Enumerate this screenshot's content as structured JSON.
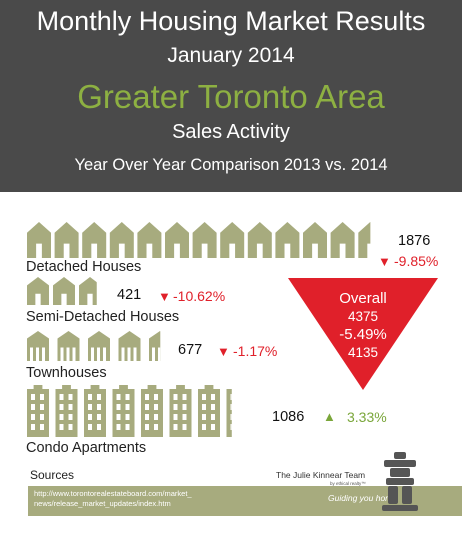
{
  "header": {
    "title": "Monthly Housing Market Results",
    "period": "January 2014",
    "region": "Greater Toronto Area",
    "subtitle": "Sales Activity",
    "comparison": "Year Over Year Comparison 2013 vs. 2014"
  },
  "chart_data": {
    "type": "bar",
    "title": "Monthly Housing Market Results",
    "categories": [
      "Detached Houses",
      "Semi-Detached Houses",
      "Townhouses",
      "Condo Apartments"
    ],
    "series": [
      {
        "values": [
          1876,
          421,
          677,
          1086
        ]
      }
    ],
    "changes": [
      "-9.85%",
      "-10.62%",
      "-1.17%",
      "3.33%"
    ],
    "change_directions": [
      "down",
      "down",
      "down",
      "up"
    ],
    "overall": {
      "label": "Overall",
      "value_2013": "4375",
      "change": "-5.49%",
      "value_2014": "4135"
    }
  },
  "rows": [
    {
      "label": "Detached Houses",
      "value": "1876",
      "change": "-9.85%"
    },
    {
      "label": "Semi-Detached Houses",
      "value": "421",
      "change": "-10.62%"
    },
    {
      "label": "Townhouses",
      "value": "677",
      "change": "-1.17%"
    },
    {
      "label": "Condo Apartments",
      "value": "1086",
      "change": "3.33%"
    }
  ],
  "icons": {
    "triangle_down": "▼",
    "triangle_up": "▲",
    "house": "house-icon"
  },
  "colors": {
    "house_green": "#a7ab7e",
    "header_bg": "#4a4a4a",
    "region_green": "#8db042",
    "decline_red": "#e0202a",
    "increase_green": "#7aa63a"
  },
  "footer": {
    "sources_label": "Sources",
    "url_line1": "http://www.torontorealestateboard.com/market_",
    "url_line2": "news/release_market_updates/index.htm",
    "brand": "The Julie Kinnear Team",
    "brand_sub": "by ethical realty™",
    "tagline": "Guiding you home"
  }
}
